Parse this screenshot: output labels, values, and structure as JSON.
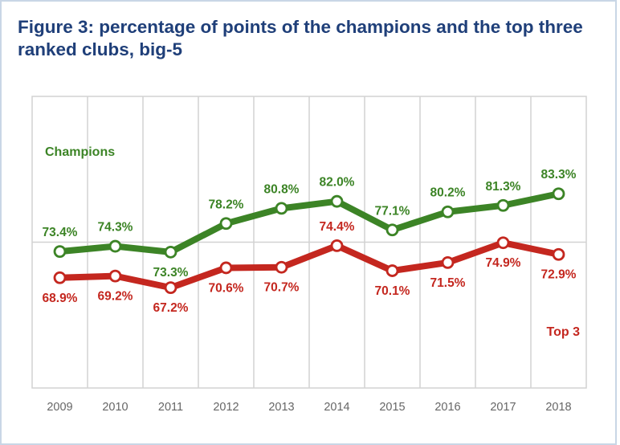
{
  "colors": {
    "title": "#1f3f79",
    "champions": "#3c8426",
    "top3": "#c4271f",
    "grid": "#d2d2d2",
    "axis_text": "#666666"
  },
  "chart_data": {
    "type": "line",
    "title": "Figure 3: percentage of points of the champions and the top three ranked clubs, big-5",
    "x": [
      "2009",
      "2010",
      "2011",
      "2012",
      "2013",
      "2014",
      "2015",
      "2016",
      "2017",
      "2018"
    ],
    "ylim": [
      50,
      100
    ],
    "grid": true,
    "series": [
      {
        "name": "Champions",
        "color": "#3c8426",
        "values": [
          73.4,
          74.3,
          73.3,
          78.2,
          80.8,
          82.0,
          77.1,
          80.2,
          81.3,
          83.3
        ],
        "labels": [
          "73.4%",
          "74.3%",
          "73.3%",
          "78.2%",
          "80.8%",
          "82.0%",
          "77.1%",
          "80.2%",
          "81.3%",
          "83.3%"
        ]
      },
      {
        "name": "Top 3",
        "color": "#c4271f",
        "values": [
          68.9,
          69.2,
          67.2,
          70.6,
          70.7,
          74.4,
          70.1,
          71.5,
          74.9,
          72.9
        ],
        "labels": [
          "68.9%",
          "69.2%",
          "67.2%",
          "70.6%",
          "70.7%",
          "74.4%",
          "70.1%",
          "71.5%",
          "74.9%",
          "72.9%"
        ]
      }
    ]
  }
}
